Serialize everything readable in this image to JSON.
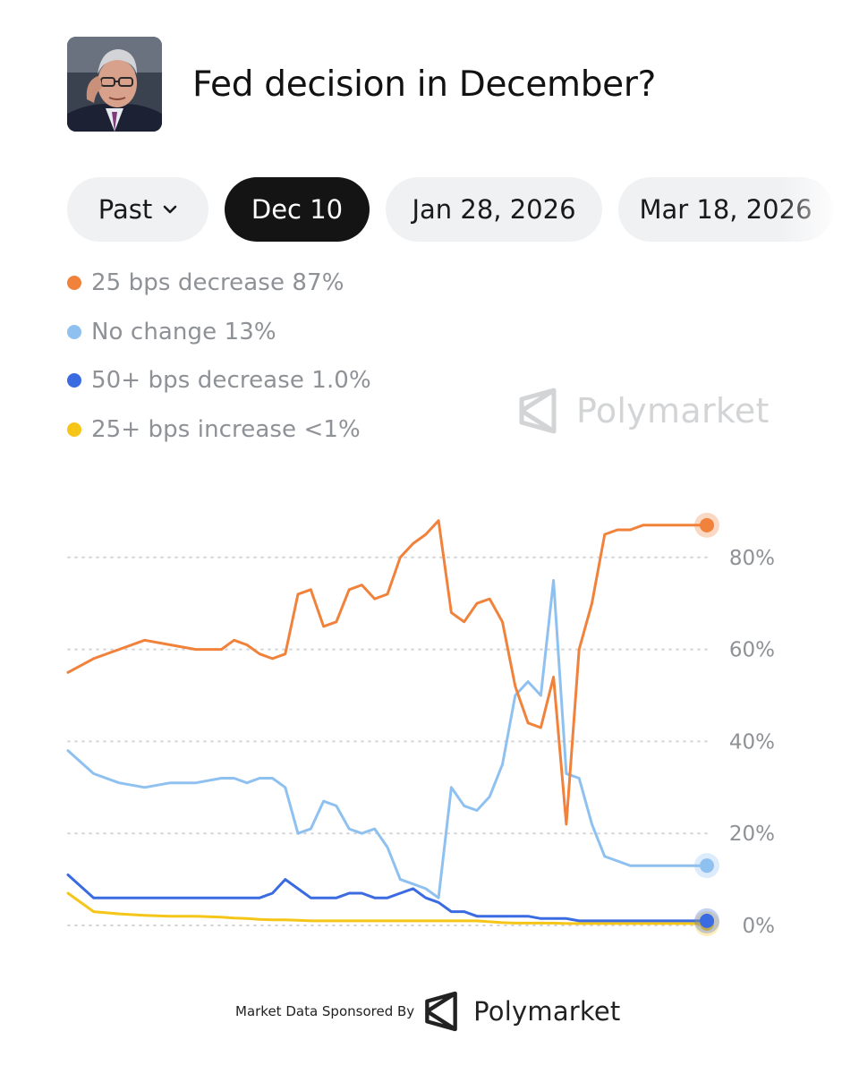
{
  "header": {
    "title": "Fed decision in December?"
  },
  "tabs": [
    {
      "label": "Past",
      "active": false,
      "has_dropdown": true
    },
    {
      "label": "Dec 10",
      "active": true
    },
    {
      "label": "Jan 28, 2026",
      "active": false
    },
    {
      "label": "Mar 18, 2026",
      "active": false
    }
  ],
  "legend": [
    {
      "label": "25 bps decrease 87%",
      "color": "#f0823c"
    },
    {
      "label": "No change 13%",
      "color": "#8fc1f0"
    },
    {
      "label": "50+ bps decrease 1.0%",
      "color": "#3b6be0"
    },
    {
      "label": "25+ bps increase <1%",
      "color": "#f5c518"
    }
  ],
  "watermark": {
    "text": "Polymarket",
    "icon": "polymarket-logo-icon"
  },
  "chart_data": {
    "type": "line",
    "title": "",
    "xlabel": "",
    "ylabel": "",
    "ylim": [
      0,
      100
    ],
    "yticks": [
      0,
      20,
      40,
      60,
      80
    ],
    "ytick_labels": [
      "0%",
      "20%",
      "40%",
      "60%",
      "80%"
    ],
    "grid": "horizontal dotted",
    "x": [
      0,
      4,
      8,
      12,
      16,
      20,
      24,
      26,
      28,
      30,
      32,
      34,
      36,
      38,
      40,
      42,
      44,
      46,
      48,
      50,
      52,
      54,
      56,
      58,
      60,
      62,
      64,
      66,
      68,
      70,
      72,
      74,
      76,
      78,
      80,
      82,
      84,
      86,
      88,
      90,
      92,
      94,
      96,
      97,
      98,
      99,
      100
    ],
    "series": [
      {
        "name": "25 bps decrease",
        "color": "#f0823c",
        "values": [
          55,
          58,
          60,
          62,
          61,
          60,
          60,
          62,
          61,
          59,
          58,
          59,
          72,
          73,
          65,
          66,
          73,
          74,
          71,
          72,
          80,
          83,
          85,
          88,
          68,
          66,
          70,
          71,
          66,
          52,
          44,
          43,
          54,
          22,
          60,
          70,
          85,
          86,
          86,
          87,
          87,
          87,
          87,
          87,
          87,
          87,
          87
        ]
      },
      {
        "name": "No change",
        "color": "#8fc1f0",
        "values": [
          38,
          33,
          31,
          30,
          31,
          31,
          32,
          32,
          31,
          32,
          32,
          30,
          20,
          21,
          27,
          26,
          21,
          20,
          21,
          17,
          10,
          9,
          8,
          6,
          30,
          26,
          25,
          28,
          35,
          50,
          53,
          50,
          75,
          33,
          32,
          22,
          15,
          14,
          13,
          13,
          13,
          13,
          13,
          13,
          13,
          13,
          13
        ]
      },
      {
        "name": "50+ bps decrease",
        "color": "#3b6be0",
        "values": [
          11,
          6,
          6,
          6,
          6,
          6,
          6,
          6,
          6,
          6,
          7,
          10,
          8,
          6,
          6,
          6,
          7,
          7,
          6,
          6,
          7,
          8,
          6,
          5,
          3,
          3,
          2,
          2,
          2,
          2,
          2,
          1.5,
          1.5,
          1.5,
          1,
          1,
          1,
          1,
          1,
          1,
          1,
          1,
          1,
          1,
          1,
          1,
          1
        ]
      },
      {
        "name": "25+ bps increase",
        "color": "#f5c518",
        "values": [
          7,
          3,
          2.5,
          2.2,
          2,
          2,
          1.8,
          1.6,
          1.5,
          1.3,
          1.2,
          1.2,
          1.1,
          1,
          1,
          1,
          1,
          1,
          1,
          1,
          1,
          1,
          1,
          1,
          1,
          1,
          1,
          0.8,
          0.6,
          0.5,
          0.5,
          0.5,
          0.5,
          0.4,
          0.4,
          0.4,
          0.4,
          0.4,
          0.4,
          0.4,
          0.4,
          0.4,
          0.4,
          0.4,
          0.4,
          0.4,
          0.4
        ]
      }
    ]
  },
  "footer": {
    "sponsor_text": "Market Data Sponsored By",
    "brand": "Polymarket"
  }
}
